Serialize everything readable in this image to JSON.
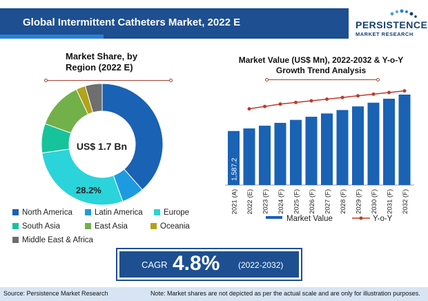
{
  "header": {
    "title": "Global Intermittent Catheters Market, 2022 E"
  },
  "logo": {
    "word": "PERSISTENCE",
    "sub": "MARKET RESEARCH"
  },
  "pie_panel": {
    "title": "Market Share, by Region (2022 E)",
    "center_label": "US$ 1.7 Bn",
    "slice_label": "28.2%"
  },
  "bar_panel": {
    "title": "Market Value (US$ Mn), 2022-2032 & Y-o-Y Growth Trend Analysis",
    "first_bar_label": "1,587.2",
    "legend": {
      "bar": "Market Value",
      "line": "Y-o-Y"
    }
  },
  "cagr": {
    "label": "CAGR",
    "value": "4.8%",
    "period": "(2022-2032)"
  },
  "footer": {
    "source": "Source: Persistence Market Research",
    "note": "Note: Market shares are not depicted as per the actual scale and are only for illustration purposes."
  },
  "colors": {
    "header": "#1d4f91",
    "bar": "#1a62b4",
    "line": "#c0392b",
    "north_america": "#1a62b4",
    "latin_america": "#1e9be0",
    "europe": "#2ad4da",
    "south_asia": "#17c39a",
    "east_asia": "#72b04a",
    "oceania": "#b3a21a",
    "mea": "#6e6e6e"
  },
  "chart_data": [
    {
      "type": "pie",
      "title": "Market Share, by Region (2022 E)",
      "categories": [
        "North America",
        "Latin America",
        "Europe",
        "South Asia",
        "East Asia",
        "Oceania",
        "Middle East & Africa"
      ],
      "values": [
        38.5,
        6.0,
        28.2,
        7.8,
        12.5,
        2.5,
        4.5
      ],
      "data_labels": {
        "Europe": "28.2%"
      },
      "center_text": "US$ 1.7 Bn",
      "legend_position": "bottom"
    },
    {
      "type": "bar",
      "title": "Market Value (US$ Mn), 2022-2032 & Y-o-Y Growth Trend Analysis",
      "categories": [
        "2021 (A)",
        "2022 (E)",
        "2023 (F)",
        "2024 (F)",
        "2025 (F)",
        "2026 (F)",
        "2027 (F)",
        "2028 (F)",
        "2029 (F)",
        "2030 (F)",
        "2031 (F)",
        "2032 (F)"
      ],
      "series": [
        {
          "name": "Market Value",
          "type": "bar",
          "values": [
            1587.2,
            1663,
            1743,
            1827,
            1914,
            2006,
            2103,
            2204,
            2310,
            2420,
            2536,
            2658
          ]
        },
        {
          "name": "Y-o-Y",
          "type": "line",
          "values": [
            null,
            4.6,
            4.7,
            4.8,
            4.8,
            4.8,
            4.8,
            4.8,
            4.8,
            4.8,
            4.8,
            4.8
          ]
        }
      ],
      "data_labels": {
        "2021 (A)": "1,587.2"
      },
      "ylim": [
        0,
        2800
      ],
      "grid": false,
      "legend_position": "bottom"
    }
  ]
}
